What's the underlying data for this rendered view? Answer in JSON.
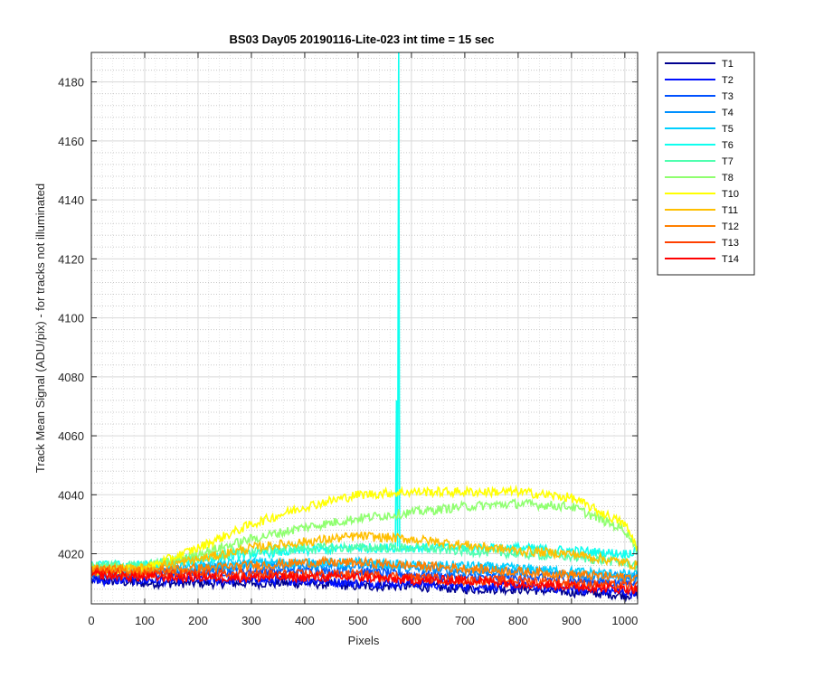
{
  "chart_data": {
    "type": "line",
    "title": "BS03 Day05 20190116-Lite-023 int time = 15 sec",
    "xlabel": "Pixels",
    "ylabel": "Track Mean Signal (ADU/pix) - for tracks not illuminated",
    "xlim": [
      0,
      1024
    ],
    "ylim": [
      4003,
      4190
    ],
    "xticks": [
      0,
      100,
      200,
      300,
      400,
      500,
      600,
      700,
      800,
      900,
      1000
    ],
    "yticks": [
      4020,
      4040,
      4060,
      4080,
      4100,
      4120,
      4140,
      4160,
      4180
    ],
    "grid": "major and minor, dotted",
    "legend_position": "outside right, top",
    "series_note": "Noisy per-pixel curves; values are approximate smooth trends read from gridlines.",
    "x": [
      0,
      100,
      200,
      300,
      400,
      500,
      600,
      700,
      800,
      900,
      1000,
      1024
    ],
    "series": [
      {
        "name": "T1",
        "color": "#00008f",
        "values": [
          4011,
          4010,
          4010,
          4010,
          4010,
          4009,
          4009,
          4008,
          4008,
          4007,
          4006,
          4006
        ]
      },
      {
        "name": "T2",
        "color": "#0010ff",
        "values": [
          4011,
          4011,
          4011,
          4011,
          4011,
          4010,
          4010,
          4009,
          4009,
          4008,
          4007,
          4007
        ]
      },
      {
        "name": "T3",
        "color": "#0050ff",
        "values": [
          4013,
          4013,
          4014,
          4014,
          4014,
          4014,
          4013,
          4012,
          4012,
          4011,
          4010,
          4010
        ]
      },
      {
        "name": "T4",
        "color": "#0090ff",
        "values": [
          4014,
          4014,
          4015,
          4016,
          4016,
          4016,
          4015,
          4014,
          4014,
          4013,
          4012,
          4012
        ]
      },
      {
        "name": "T5",
        "color": "#00d0ff",
        "values": [
          4015,
          4015,
          4016,
          4017,
          4017,
          4017,
          4016,
          4016,
          4015,
          4014,
          4013,
          4013
        ]
      },
      {
        "name": "T6",
        "color": "#0fffef",
        "values": [
          4016,
          4016,
          4018,
          4020,
          4021,
          4022,
          4022,
          4022,
          4022,
          4021,
          4020,
          4021
        ]
      },
      {
        "name": "T7",
        "color": "#4fffaf",
        "values": [
          4016,
          4016,
          4019,
          4021,
          4022,
          4022,
          4022,
          4021,
          4020,
          4019,
          4017,
          4016
        ]
      },
      {
        "name": "T8",
        "color": "#8fff6f",
        "values": [
          4015,
          4015,
          4020,
          4025,
          4029,
          4032,
          4034,
          4036,
          4037,
          4036,
          4028,
          4022
        ]
      },
      {
        "name": "T10",
        "color": "#ffff00",
        "values": [
          4014,
          4015,
          4022,
          4030,
          4036,
          4040,
          4041,
          4041,
          4041,
          4039,
          4030,
          4022
        ]
      },
      {
        "name": "T11",
        "color": "#ffbf00",
        "values": [
          4015,
          4015,
          4018,
          4022,
          4024,
          4026,
          4025,
          4023,
          4021,
          4020,
          4017,
          4016
        ]
      },
      {
        "name": "T12",
        "color": "#ff8000",
        "values": [
          4015,
          4014,
          4015,
          4016,
          4017,
          4017,
          4016,
          4015,
          4014,
          4013,
          4012,
          4012
        ]
      },
      {
        "name": "T13",
        "color": "#ff4000",
        "values": [
          4014,
          4013,
          4013,
          4013,
          4013,
          4013,
          4012,
          4011,
          4011,
          4010,
          4009,
          4009
        ]
      },
      {
        "name": "T14",
        "color": "#ff0000",
        "values": [
          4013,
          4012,
          4012,
          4012,
          4012,
          4012,
          4011,
          4011,
          4010,
          4009,
          4008,
          4008
        ]
      }
    ],
    "annotations": [
      {
        "series": "T6",
        "type": "spike",
        "x": 576,
        "peak_y": 4190,
        "base_y": 4022
      }
    ]
  }
}
